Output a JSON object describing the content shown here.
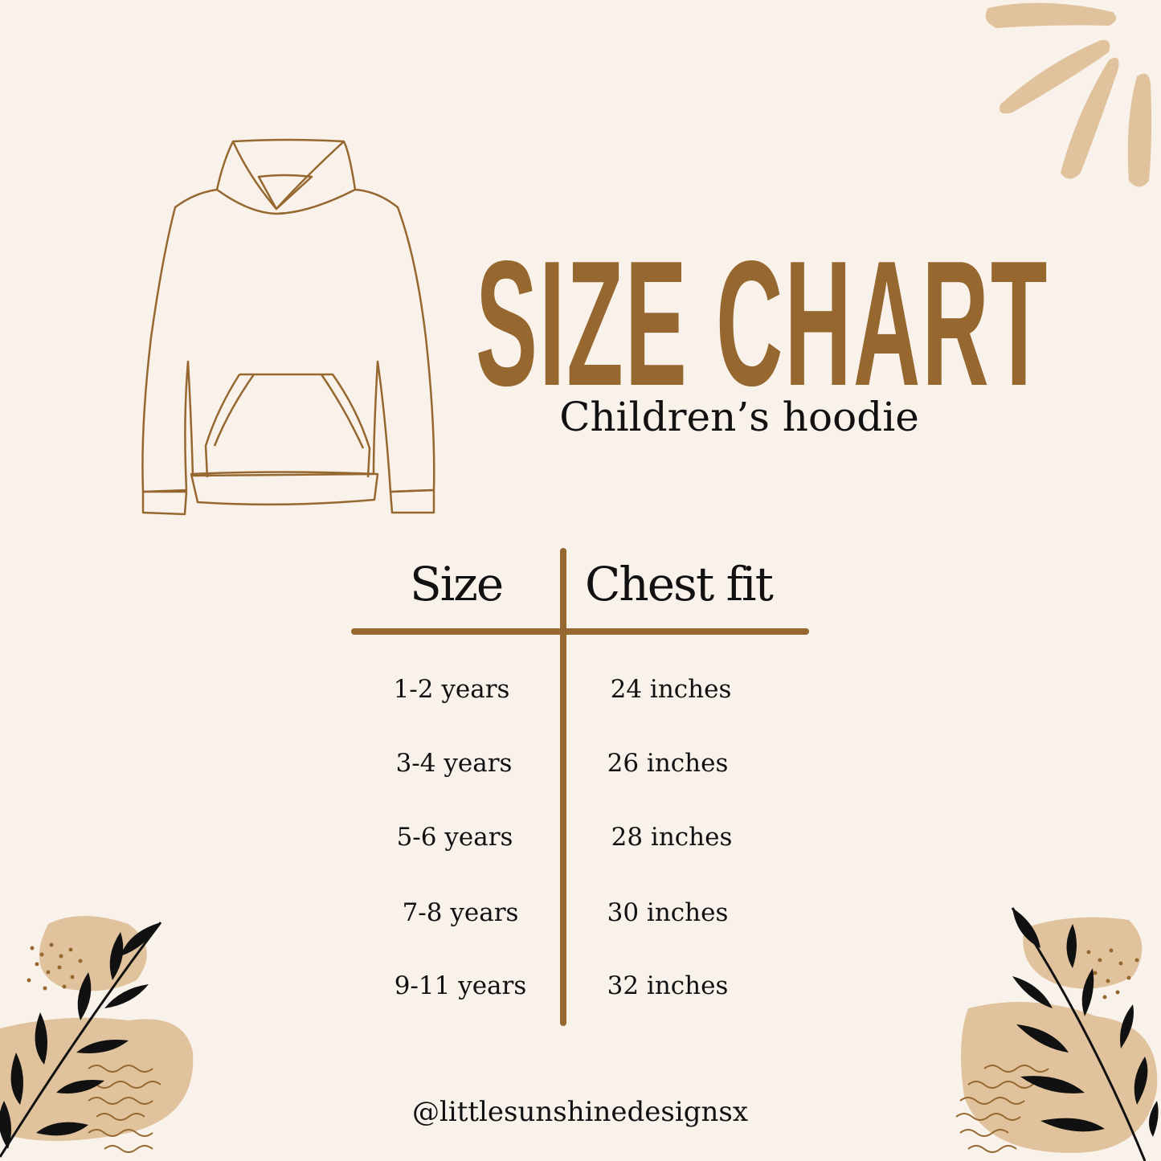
{
  "title": "SIZE CHART",
  "subtitle": "Children’s hoodie",
  "table": {
    "headers": [
      "Size",
      "Chest fit"
    ],
    "rows": [
      {
        "size": "1-2 years",
        "chest": "24 inches"
      },
      {
        "size": "3-4 years",
        "chest": "26 inches"
      },
      {
        "size": "5-6 years",
        "chest": "28 inches"
      },
      {
        "size": "7-8 years",
        "chest": "30 inches"
      },
      {
        "size": "9-11 years",
        "chest": "32 inches"
      }
    ]
  },
  "footer": "@littlesunshinedesignsx",
  "colors": {
    "background": "#f8f2eb",
    "brown": "#966830",
    "tan": "#e0c29c",
    "leaf": "#111111"
  }
}
